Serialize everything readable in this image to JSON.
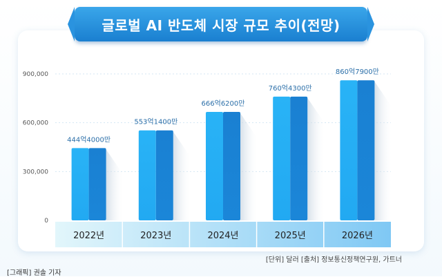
{
  "title": "글로벌 AI 반도체 시장 규모 추이(전망)",
  "chart_data": {
    "type": "bar",
    "title": "글로벌 AI 반도체 시장 규모 추이(전망)",
    "categories": [
      "2022년",
      "2023년",
      "2024년",
      "2025년",
      "2026년"
    ],
    "values": [
      444400,
      553140,
      666620,
      760430,
      860790
    ],
    "data_labels": [
      "444억4000만",
      "553억1400만",
      "666억6200만",
      "760억4300만",
      "860억7900만"
    ],
    "y_ticks": [
      0,
      300000,
      600000,
      900000
    ],
    "y_tick_labels": [
      "0",
      "300,000",
      "600,000",
      "900,000"
    ],
    "ylim": [
      0,
      900000
    ],
    "xlabel": "",
    "ylabel": "",
    "grid": true
  },
  "source_note": "[단위] 달러   [출처] 정보통신정책연구원, 가트너",
  "credit": "[그래픽] 권솔 기자",
  "colors": {
    "bar_light": "#22a9f2",
    "bar_dark": "#1b86d8",
    "banner": "#2590e0",
    "axis_band_light": "#e2f6fb",
    "axis_band_dark": "#7fc8f4",
    "label_text": "#2a6ea8"
  }
}
